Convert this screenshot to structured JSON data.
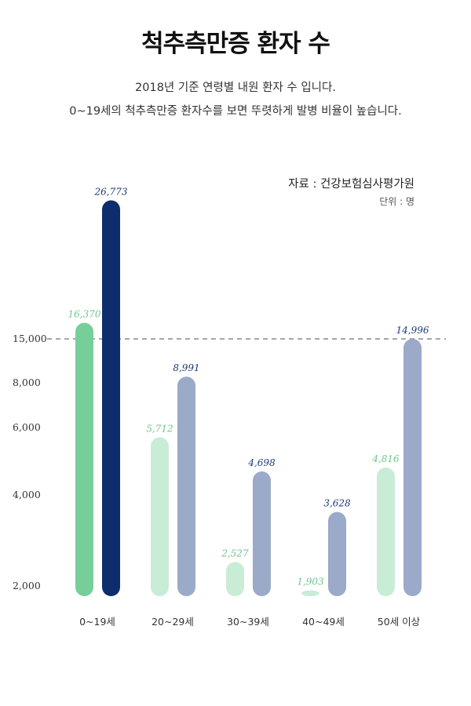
{
  "title": "척추측만증 환자 수",
  "description": [
    "2018년 기준 연령별 내원 환자 수 입니다.",
    "0~19세의 척추측만증 환자수를 보면 뚜렷하게 발병 비율이 높습니다."
  ],
  "source": "자료 : 건강보험심사평가원",
  "unit": "단위 : 명",
  "colors": {
    "green_dark": "#76cf98",
    "navy": "#0e2d6c",
    "green_light": "#c9ecd6",
    "blue_gray": "#9aaac8",
    "green_label": "#6fc48e",
    "navy_label": "#1d3a78",
    "reference_line": "#888888"
  },
  "chart_data": {
    "type": "bar",
    "categories": [
      "0~19세",
      "20~29세",
      "30~39세",
      "40~49세",
      "50세 이상"
    ],
    "series": [
      {
        "values": [
          16370,
          5712,
          2527,
          1903,
          4816
        ]
      },
      {
        "values": [
          26773,
          8991,
          4698,
          3628,
          14996
        ]
      }
    ],
    "value_labels": [
      [
        "16,370",
        "5,712",
        "2,527",
        "1,903",
        "4,816"
      ],
      [
        "26,773",
        "8,991",
        "4,698",
        "3,628",
        "14,996"
      ]
    ],
    "y_ticks": [
      2000,
      4000,
      6000,
      8000,
      15000
    ],
    "y_tick_labels": [
      "2,000",
      "4,000",
      "6,000",
      "8,000",
      "15,000"
    ],
    "reference_line": 15000,
    "highlighted_category": "0~19세",
    "scale": "broken (non-linear)",
    "grid": false,
    "legend": "none"
  }
}
